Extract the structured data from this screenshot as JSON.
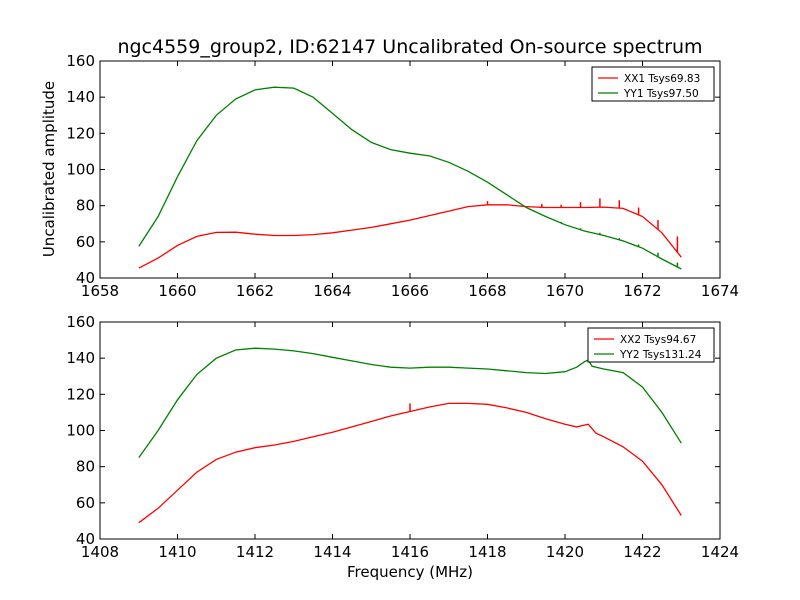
{
  "figure": {
    "title": "ngc4559_group2, ID:62147 Uncalibrated On-source spectrum",
    "ylabel": "Uncalibrated amplitude",
    "xlabel": "Frequency (MHz)"
  },
  "chart_data": [
    {
      "type": "line",
      "title": "ngc4559_group2, ID:62147 Uncalibrated On-source spectrum",
      "ylabel": "Uncalibrated amplitude",
      "xlabel": "",
      "xlim": [
        1658,
        1674
      ],
      "ylim": [
        40,
        160
      ],
      "xticks": [
        "1658",
        "1660",
        "1662",
        "1664",
        "1666",
        "1668",
        "1670",
        "1672",
        "1674"
      ],
      "yticks": [
        "40",
        "60",
        "80",
        "100",
        "120",
        "140",
        "160"
      ],
      "grid": false,
      "legend": "top-right",
      "series": [
        {
          "name": "XX1 Tsys69.83",
          "color": "#ff0000",
          "points": [
            [
              1659.0,
              45.5
            ],
            [
              1659.5,
              51
            ],
            [
              1660.0,
              58
            ],
            [
              1660.5,
              63
            ],
            [
              1661.0,
              65.2
            ],
            [
              1661.5,
              65.3
            ],
            [
              1662.0,
              64.2
            ],
            [
              1662.5,
              63.5
            ],
            [
              1663.0,
              63.5
            ],
            [
              1663.5,
              64
            ],
            [
              1664.0,
              65
            ],
            [
              1664.5,
              66.5
            ],
            [
              1665.0,
              68
            ],
            [
              1665.5,
              70
            ],
            [
              1666.0,
              72
            ],
            [
              1666.5,
              74.5
            ],
            [
              1667.0,
              77
            ],
            [
              1667.5,
              79.5
            ],
            [
              1668.0,
              80.5
            ],
            [
              1668.5,
              80.5
            ],
            [
              1669.0,
              79.5
            ],
            [
              1669.5,
              79
            ],
            [
              1670.0,
              79
            ],
            [
              1670.5,
              79
            ],
            [
              1671.0,
              79.2
            ],
            [
              1671.5,
              78.5
            ],
            [
              1672.0,
              74
            ],
            [
              1672.5,
              65
            ],
            [
              1673.0,
              51.5
            ]
          ],
          "spikes": [
            [
              1668.0,
              82.5
            ],
            [
              1669.4,
              81
            ],
            [
              1669.9,
              80.5
            ],
            [
              1670.4,
              82
            ],
            [
              1670.9,
              84
            ],
            [
              1671.4,
              83
            ],
            [
              1671.9,
              79
            ],
            [
              1672.4,
              72
            ],
            [
              1672.9,
              63
            ]
          ]
        },
        {
          "name": "YY1 Tsys97.50",
          "color": "#008000",
          "points": [
            [
              1659.0,
              57.5
            ],
            [
              1659.5,
              74
            ],
            [
              1660.0,
              96
            ],
            [
              1660.5,
              116
            ],
            [
              1661.0,
              130
            ],
            [
              1661.5,
              139
            ],
            [
              1662.0,
              144
            ],
            [
              1662.5,
              145.5
            ],
            [
              1663.0,
              145
            ],
            [
              1663.5,
              140
            ],
            [
              1664.0,
              131
            ],
            [
              1664.5,
              122
            ],
            [
              1665.0,
              115
            ],
            [
              1665.5,
              111
            ],
            [
              1666.0,
              109
            ],
            [
              1666.5,
              107.5
            ],
            [
              1667.0,
              104
            ],
            [
              1667.5,
              99
            ],
            [
              1668.0,
              93
            ],
            [
              1668.5,
              86
            ],
            [
              1669.0,
              79
            ],
            [
              1669.5,
              74
            ],
            [
              1670.0,
              69.5
            ],
            [
              1670.5,
              66
            ],
            [
              1671.0,
              63.5
            ],
            [
              1671.5,
              60.5
            ],
            [
              1672.0,
              56.5
            ],
            [
              1672.5,
              50.5
            ],
            [
              1673.0,
              45
            ]
          ],
          "spikes": [
            [
              1669.9,
              71
            ],
            [
              1670.4,
              67.5
            ],
            [
              1670.9,
              65
            ],
            [
              1671.4,
              62
            ],
            [
              1671.9,
              58.5
            ],
            [
              1672.4,
              54
            ],
            [
              1672.9,
              48.5
            ]
          ]
        }
      ]
    },
    {
      "type": "line",
      "title": "",
      "ylabel": "",
      "xlabel": "Frequency (MHz)",
      "xlim": [
        1408,
        1424
      ],
      "ylim": [
        40,
        160
      ],
      "xticks": [
        "1408",
        "1410",
        "1412",
        "1414",
        "1416",
        "1418",
        "1420",
        "1422",
        "1424"
      ],
      "yticks": [
        "40",
        "60",
        "80",
        "100",
        "120",
        "140",
        "160"
      ],
      "grid": false,
      "legend": "top-right",
      "series": [
        {
          "name": "XX2 Tsys94.67",
          "color": "#ff0000",
          "points": [
            [
              1409.0,
              49
            ],
            [
              1409.5,
              57
            ],
            [
              1410.0,
              67
            ],
            [
              1410.5,
              77
            ],
            [
              1411.0,
              84
            ],
            [
              1411.5,
              88
            ],
            [
              1412.0,
              90.5
            ],
            [
              1412.5,
              92
            ],
            [
              1413.0,
              94
            ],
            [
              1413.5,
              96.5
            ],
            [
              1414.0,
              99
            ],
            [
              1414.5,
              102
            ],
            [
              1415.0,
              105
            ],
            [
              1415.5,
              108
            ],
            [
              1416.0,
              110.5
            ],
            [
              1416.5,
              113
            ],
            [
              1417.0,
              115
            ],
            [
              1417.5,
              115
            ],
            [
              1418.0,
              114.5
            ],
            [
              1418.5,
              112.5
            ],
            [
              1419.0,
              110
            ],
            [
              1419.5,
              106.5
            ],
            [
              1420.0,
              103.5
            ],
            [
              1420.3,
              102
            ],
            [
              1420.5,
              103
            ],
            [
              1420.6,
              103.5
            ],
            [
              1420.8,
              98.5
            ],
            [
              1421.0,
              96.5
            ],
            [
              1421.5,
              91
            ],
            [
              1422.0,
              83
            ],
            [
              1422.5,
              70
            ],
            [
              1423.0,
              53
            ]
          ],
          "spikes": [
            [
              1416.0,
              115
            ]
          ]
        },
        {
          "name": "YY2 Tsys131.24",
          "color": "#008000",
          "points": [
            [
              1409.0,
              85
            ],
            [
              1409.5,
              100
            ],
            [
              1410.0,
              117
            ],
            [
              1410.5,
              131
            ],
            [
              1411.0,
              140
            ],
            [
              1411.5,
              144.5
            ],
            [
              1412.0,
              145.5
            ],
            [
              1412.5,
              145
            ],
            [
              1413.0,
              144
            ],
            [
              1413.5,
              142.5
            ],
            [
              1414.0,
              140.5
            ],
            [
              1414.5,
              138.5
            ],
            [
              1415.0,
              136.5
            ],
            [
              1415.5,
              135
            ],
            [
              1416.0,
              134.5
            ],
            [
              1416.5,
              135
            ],
            [
              1417.0,
              135
            ],
            [
              1417.5,
              134.5
            ],
            [
              1418.0,
              134
            ],
            [
              1418.5,
              133
            ],
            [
              1419.0,
              132
            ],
            [
              1419.5,
              131.5
            ],
            [
              1420.0,
              132.5
            ],
            [
              1420.3,
              135
            ],
            [
              1420.5,
              138
            ],
            [
              1420.6,
              139
            ],
            [
              1420.7,
              135.5
            ],
            [
              1421.0,
              134
            ],
            [
              1421.5,
              132
            ],
            [
              1422.0,
              124
            ],
            [
              1422.5,
              110
            ],
            [
              1423.0,
              93
            ]
          ],
          "spikes": []
        }
      ]
    }
  ]
}
